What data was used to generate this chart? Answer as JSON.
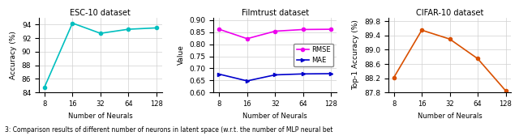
{
  "esc10": {
    "title": "ESC-10 dataset",
    "x": [
      8,
      16,
      32,
      64,
      128
    ],
    "y": [
      84.8,
      94.2,
      92.7,
      93.3,
      93.5
    ],
    "color": "#00BFBF",
    "ylabel": "Accuracy (%)",
    "xlabel": "Number of Neurals",
    "ylim": [
      84,
      95
    ],
    "yticks": [
      84,
      86,
      88,
      90,
      92,
      94
    ]
  },
  "filmtrust": {
    "title": "Filmtrust dataset",
    "x": [
      8,
      16,
      32,
      64,
      128
    ],
    "rmse": [
      0.862,
      0.823,
      0.854,
      0.861,
      0.862
    ],
    "mae": [
      0.676,
      0.648,
      0.673,
      0.677,
      0.678
    ],
    "rmse_color": "#EE00EE",
    "mae_color": "#0000CC",
    "ylabel": "Value",
    "xlabel": "Number of Neurals",
    "ylim": [
      0.6,
      0.91
    ],
    "yticks": [
      0.6,
      0.65,
      0.7,
      0.75,
      0.8,
      0.85,
      0.9
    ]
  },
  "cifar10": {
    "title": "CIFAR-10 dataset",
    "x": [
      8,
      16,
      32,
      64,
      128
    ],
    "y": [
      88.22,
      89.55,
      89.3,
      88.75,
      87.85
    ],
    "color": "#D95000",
    "ylabel": "Top-1 Accuracy (%)",
    "xlabel": "Number of Neurals",
    "ylim": [
      87.8,
      89.9
    ],
    "yticks": [
      87.8,
      88.2,
      88.6,
      89.0,
      89.4,
      89.8
    ]
  },
  "caption": "3: Comparison results of different number of neurons in latent space (w.r.t. the number of MLP neural bet"
}
